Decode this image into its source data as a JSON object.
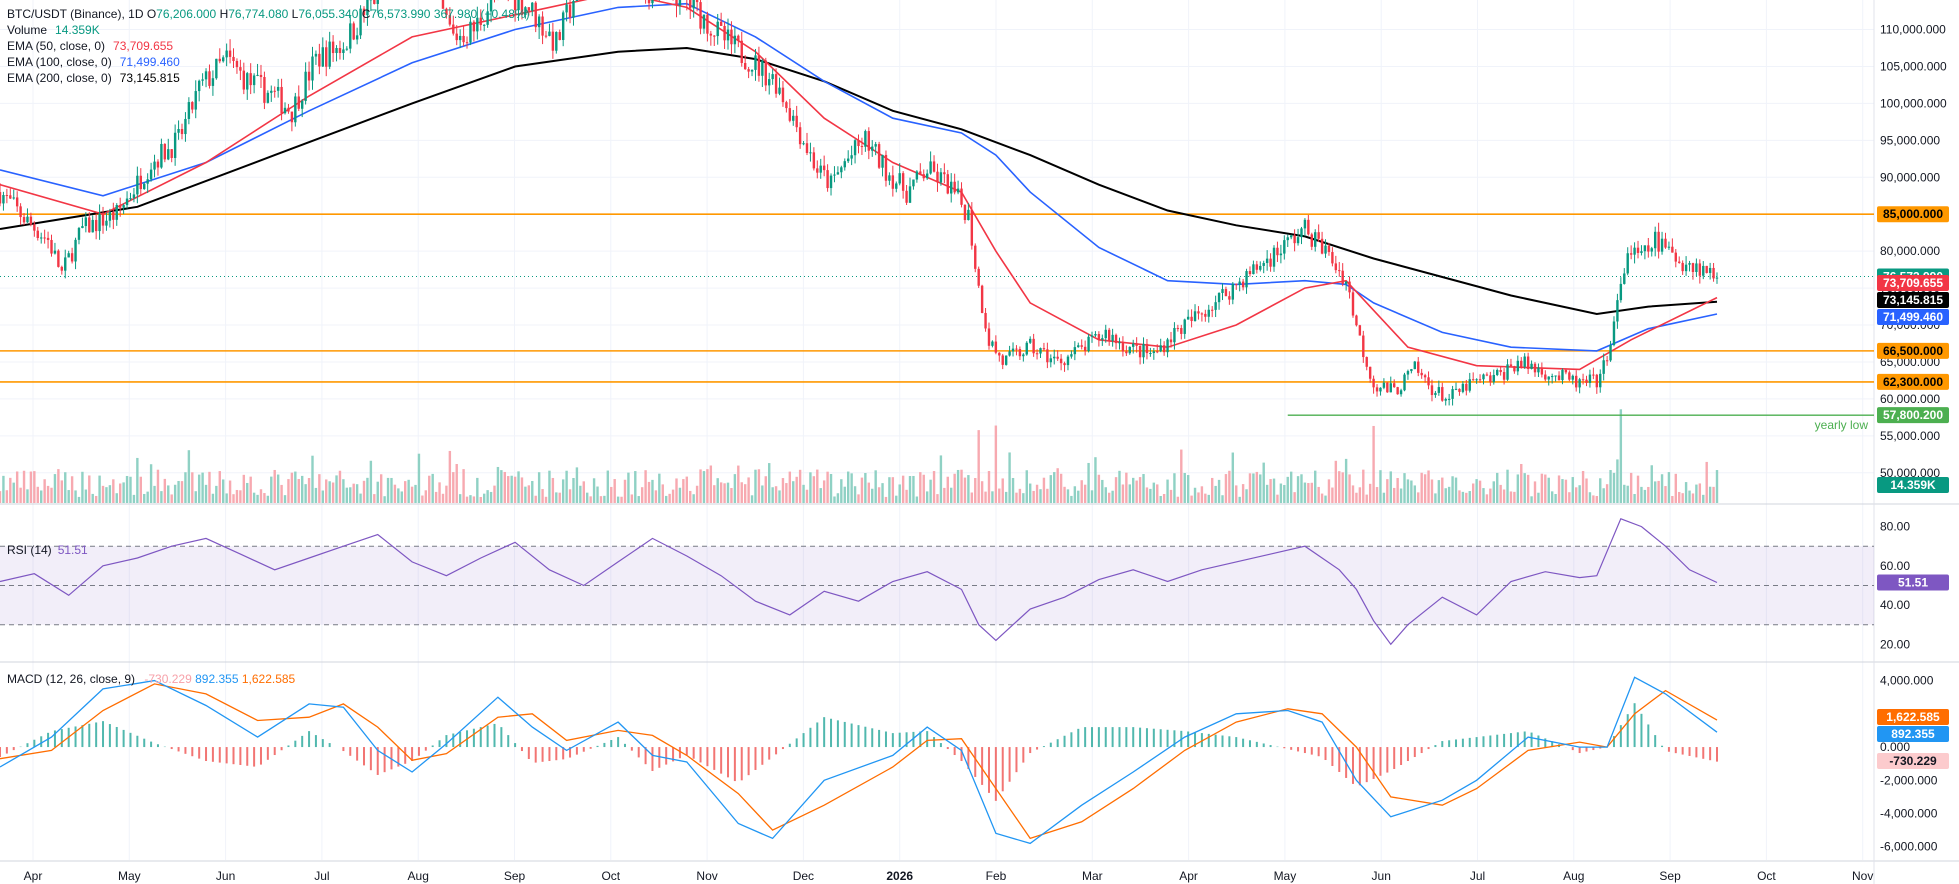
{
  "header": {
    "symbol": "BTC/USDT (Binance), 1D",
    "o_label": "O",
    "o": "76,206.000",
    "h_label": "H",
    "h": "76,774.080",
    "l_label": "L",
    "l": "76,055.340",
    "c_label": "C",
    "c": "76,573.990",
    "change": "367.980 (+0.48%)"
  },
  "legend": [
    {
      "label": "Volume",
      "value": "14.359K",
      "color": "#089981"
    },
    {
      "label": "EMA (50, close, 0)",
      "value": "73,709.655",
      "color": "#f23645"
    },
    {
      "label": "EMA (100, close, 0)",
      "value": "71,499.460",
      "color": "#2962ff"
    },
    {
      "label": "EMA (200, close, 0)",
      "value": "73,145.815",
      "color": "#000000"
    }
  ],
  "rsi_legend": {
    "label": "RSI (14)",
    "value": "51.51",
    "color": "#7e57c2"
  },
  "macd_legend": {
    "label": "MACD (12, 26, close, 9)",
    "hist": "-730.229",
    "macd": "892.355",
    "signal": "1,622.585"
  },
  "chart_data": {
    "type": "candlestick",
    "price_axis": {
      "min": 52000,
      "max": 114000,
      "ticks": [
        110000,
        105000,
        100000,
        95000,
        90000,
        85000,
        80000,
        75000,
        70000,
        65000,
        60000,
        55000,
        50000
      ]
    },
    "price_tick_labels": [
      "110,000.000",
      "105,000.000",
      "100,000.000",
      "95,000.000",
      "90,000.000",
      "85,000.000",
      "80,000.000",
      "75,000.000",
      "70,000.000",
      "65,000.000",
      "60,000.000",
      "55,000.000",
      "50,000.000"
    ],
    "x_axis_labels": [
      "Apr",
      "May",
      "Jun",
      "Jul",
      "Aug",
      "Sep",
      "Oct",
      "Nov",
      "Dec",
      "2026",
      "Feb",
      "Mar",
      "Apr",
      "May",
      "Jun",
      "Jul",
      "Aug",
      "Sep",
      "Oct",
      "Nov"
    ],
    "close_path": [
      [
        0,
        88000
      ],
      [
        8,
        84000
      ],
      [
        14,
        81500
      ],
      [
        18,
        77000
      ],
      [
        24,
        83000
      ],
      [
        34,
        85000
      ],
      [
        44,
        92000
      ],
      [
        52,
        95000
      ],
      [
        58,
        102000
      ],
      [
        66,
        106000
      ],
      [
        72,
        103000
      ],
      [
        80,
        101000
      ],
      [
        85,
        99000
      ],
      [
        92,
        106000
      ],
      [
        100,
        108000
      ],
      [
        110,
        115000
      ],
      [
        118,
        119000
      ],
      [
        124,
        117000
      ],
      [
        132,
        109000
      ],
      [
        138,
        110000
      ],
      [
        146,
        116000
      ],
      [
        154,
        113000
      ],
      [
        162,
        108000
      ],
      [
        170,
        118000
      ],
      [
        178,
        121000
      ],
      [
        186,
        115000
      ],
      [
        194,
        116000
      ],
      [
        202,
        113000
      ],
      [
        210,
        109000
      ],
      [
        218,
        106000
      ],
      [
        226,
        103000
      ],
      [
        232,
        97000
      ],
      [
        238,
        91000
      ],
      [
        242,
        89000
      ],
      [
        246,
        92000
      ],
      [
        252,
        95000
      ],
      [
        258,
        91000
      ],
      [
        264,
        88000
      ],
      [
        270,
        91000
      ],
      [
        276,
        89000
      ],
      [
        282,
        85000
      ],
      [
        285,
        75000
      ],
      [
        288,
        68000
      ],
      [
        292,
        65000
      ],
      [
        300,
        67000
      ],
      [
        308,
        65000
      ],
      [
        316,
        67000
      ],
      [
        322,
        69000
      ],
      [
        328,
        67000
      ],
      [
        336,
        66000
      ],
      [
        342,
        69000
      ],
      [
        348,
        71000
      ],
      [
        356,
        74000
      ],
      [
        364,
        77000
      ],
      [
        372,
        80000
      ],
      [
        380,
        83000
      ],
      [
        386,
        80000
      ],
      [
        392,
        76000
      ],
      [
        396,
        68000
      ],
      [
        400,
        62000
      ],
      [
        406,
        61000
      ],
      [
        412,
        64000
      ],
      [
        418,
        61000
      ],
      [
        422,
        60000
      ],
      [
        428,
        62000
      ],
      [
        436,
        63000
      ],
      [
        442,
        65000
      ],
      [
        448,
        64000
      ],
      [
        454,
        63000
      ],
      [
        460,
        62000
      ],
      [
        466,
        62500
      ],
      [
        470,
        70000
      ],
      [
        474,
        80000
      ],
      [
        478,
        79000
      ],
      [
        482,
        81500
      ],
      [
        488,
        79000
      ],
      [
        494,
        78000
      ],
      [
        500,
        76574
      ]
    ],
    "ema50_path": [
      [
        0,
        89000
      ],
      [
        30,
        85000
      ],
      [
        60,
        92000
      ],
      [
        90,
        101000
      ],
      [
        120,
        109000
      ],
      [
        150,
        112000
      ],
      [
        180,
        115000
      ],
      [
        200,
        113000
      ],
      [
        220,
        107000
      ],
      [
        240,
        98000
      ],
      [
        260,
        92000
      ],
      [
        280,
        88000
      ],
      [
        290,
        80000
      ],
      [
        300,
        73000
      ],
      [
        320,
        68000
      ],
      [
        340,
        67000
      ],
      [
        360,
        70000
      ],
      [
        380,
        75000
      ],
      [
        392,
        76000
      ],
      [
        400,
        72000
      ],
      [
        410,
        67000
      ],
      [
        430,
        64500
      ],
      [
        460,
        64000
      ],
      [
        475,
        68000
      ],
      [
        500,
        73710
      ]
    ],
    "ema100_path": [
      [
        0,
        91000
      ],
      [
        30,
        87500
      ],
      [
        60,
        92000
      ],
      [
        90,
        99000
      ],
      [
        120,
        105500
      ],
      [
        150,
        110000
      ],
      [
        180,
        113000
      ],
      [
        200,
        113500
      ],
      [
        220,
        109000
      ],
      [
        240,
        103000
      ],
      [
        260,
        98000
      ],
      [
        280,
        96000
      ],
      [
        290,
        93000
      ],
      [
        300,
        88000
      ],
      [
        320,
        80500
      ],
      [
        340,
        76000
      ],
      [
        360,
        75500
      ],
      [
        380,
        76000
      ],
      [
        392,
        75500
      ],
      [
        400,
        73000
      ],
      [
        420,
        69000
      ],
      [
        440,
        67000
      ],
      [
        465,
        66500
      ],
      [
        480,
        69500
      ],
      [
        500,
        71499
      ]
    ],
    "ema200_path": [
      [
        0,
        83000
      ],
      [
        40,
        86000
      ],
      [
        80,
        93000
      ],
      [
        120,
        100000
      ],
      [
        150,
        105000
      ],
      [
        180,
        107000
      ],
      [
        200,
        107500
      ],
      [
        220,
        106000
      ],
      [
        240,
        103000
      ],
      [
        260,
        99000
      ],
      [
        280,
        96500
      ],
      [
        300,
        93000
      ],
      [
        320,
        89000
      ],
      [
        340,
        85500
      ],
      [
        360,
        83500
      ],
      [
        380,
        82000
      ],
      [
        400,
        79000
      ],
      [
        420,
        76500
      ],
      [
        440,
        74000
      ],
      [
        465,
        71500
      ],
      [
        480,
        72500
      ],
      [
        500,
        73146
      ]
    ],
    "horizontal_levels": [
      {
        "price": 85000,
        "label": "85,000.000",
        "color": "#ff9800"
      },
      {
        "price": 66500,
        "label": "66,500.000",
        "color": "#ff9800"
      },
      {
        "price": 62300,
        "label": "62,300.000",
        "color": "#ff9800"
      }
    ],
    "yearly_low": {
      "price": 57800,
      "label": "57,800.200",
      "text": "yearly low",
      "color": "#4caf50"
    },
    "last_price": {
      "label": "76,573.990",
      "color": "#089981"
    },
    "ema_tags": [
      {
        "label": "73,709.655",
        "color": "#f23645"
      },
      {
        "label": "73,145.815",
        "color": "#000000"
      },
      {
        "label": "71,499.460",
        "color": "#2962ff"
      }
    ],
    "volume_tag": {
      "label": "14.359K",
      "color": "#089981"
    },
    "rsi": {
      "levels": [
        70,
        50,
        30
      ],
      "tick_labels": [
        "80.00",
        "60.00",
        "40.00",
        "20.00"
      ],
      "ticks": [
        80,
        60,
        40,
        20
      ],
      "range": [
        12,
        90
      ],
      "last_label": "51.51",
      "path": [
        [
          0,
          52
        ],
        [
          10,
          56
        ],
        [
          20,
          45
        ],
        [
          30,
          60
        ],
        [
          40,
          64
        ],
        [
          50,
          70
        ],
        [
          60,
          74
        ],
        [
          70,
          66
        ],
        [
          80,
          58
        ],
        [
          90,
          64
        ],
        [
          100,
          70
        ],
        [
          110,
          76
        ],
        [
          120,
          62
        ],
        [
          130,
          55
        ],
        [
          140,
          64
        ],
        [
          150,
          72
        ],
        [
          160,
          58
        ],
        [
          170,
          50
        ],
        [
          180,
          62
        ],
        [
          190,
          74
        ],
        [
          200,
          65
        ],
        [
          210,
          55
        ],
        [
          220,
          42
        ],
        [
          230,
          35
        ],
        [
          240,
          47
        ],
        [
          250,
          42
        ],
        [
          260,
          52
        ],
        [
          270,
          57
        ],
        [
          280,
          48
        ],
        [
          285,
          30
        ],
        [
          290,
          22
        ],
        [
          300,
          38
        ],
        [
          310,
          44
        ],
        [
          320,
          53
        ],
        [
          330,
          58
        ],
        [
          340,
          52
        ],
        [
          350,
          58
        ],
        [
          360,
          62
        ],
        [
          370,
          66
        ],
        [
          380,
          70
        ],
        [
          390,
          58
        ],
        [
          395,
          48
        ],
        [
          400,
          32
        ],
        [
          405,
          20
        ],
        [
          410,
          30
        ],
        [
          420,
          44
        ],
        [
          430,
          35
        ],
        [
          440,
          52
        ],
        [
          450,
          57
        ],
        [
          460,
          54
        ],
        [
          465,
          55
        ],
        [
          472,
          84
        ],
        [
          478,
          80
        ],
        [
          485,
          70
        ],
        [
          492,
          58
        ],
        [
          500,
          51.5
        ]
      ]
    },
    "macd": {
      "tick_values": [
        4000,
        2000,
        0,
        -2000,
        -4000,
        -6000
      ],
      "tick_labels": [
        "4,000.000",
        "2,000.000",
        "0.000",
        "-2,000.000",
        "-4,000.000",
        "-6,000.000"
      ],
      "range": [
        -6800,
        5000
      ],
      "macd_last": "892.355",
      "signal_last": "1,622.585",
      "hist_last": "-730.229",
      "macd_path": [
        [
          0,
          -1200
        ],
        [
          15,
          600
        ],
        [
          30,
          3500
        ],
        [
          45,
          4000
        ],
        [
          60,
          2500
        ],
        [
          75,
          600
        ],
        [
          90,
          2600
        ],
        [
          100,
          2400
        ],
        [
          110,
          -200
        ],
        [
          120,
          -1500
        ],
        [
          130,
          200
        ],
        [
          145,
          3000
        ],
        [
          155,
          1200
        ],
        [
          165,
          -200
        ],
        [
          180,
          1500
        ],
        [
          190,
          -500
        ],
        [
          200,
          -900
        ],
        [
          215,
          -4600
        ],
        [
          225,
          -5500
        ],
        [
          240,
          -2000
        ],
        [
          260,
          -500
        ],
        [
          270,
          1200
        ],
        [
          280,
          -200
        ],
        [
          290,
          -5200
        ],
        [
          300,
          -5800
        ],
        [
          315,
          -3500
        ],
        [
          330,
          -1500
        ],
        [
          345,
          600
        ],
        [
          360,
          2000
        ],
        [
          375,
          2200
        ],
        [
          385,
          1500
        ],
        [
          395,
          -2000
        ],
        [
          405,
          -4200
        ],
        [
          420,
          -3200
        ],
        [
          430,
          -2000
        ],
        [
          445,
          600
        ],
        [
          460,
          0
        ],
        [
          468,
          0
        ],
        [
          476,
          4200
        ],
        [
          485,
          3200
        ],
        [
          500,
          892
        ]
      ],
      "signal_path": [
        [
          0,
          -700
        ],
        [
          15,
          -200
        ],
        [
          30,
          2200
        ],
        [
          45,
          3800
        ],
        [
          60,
          3200
        ],
        [
          75,
          1600
        ],
        [
          90,
          1800
        ],
        [
          100,
          2600
        ],
        [
          110,
          1200
        ],
        [
          120,
          -800
        ],
        [
          130,
          -400
        ],
        [
          145,
          1800
        ],
        [
          155,
          2000
        ],
        [
          165,
          400
        ],
        [
          180,
          1000
        ],
        [
          190,
          700
        ],
        [
          200,
          -500
        ],
        [
          215,
          -2800
        ],
        [
          225,
          -5000
        ],
        [
          240,
          -3500
        ],
        [
          260,
          -1200
        ],
        [
          270,
          400
        ],
        [
          280,
          500
        ],
        [
          290,
          -2500
        ],
        [
          300,
          -5500
        ],
        [
          315,
          -4500
        ],
        [
          330,
          -2500
        ],
        [
          345,
          -200
        ],
        [
          360,
          1500
        ],
        [
          375,
          2300
        ],
        [
          385,
          2000
        ],
        [
          395,
          0
        ],
        [
          405,
          -3000
        ],
        [
          420,
          -3500
        ],
        [
          430,
          -2500
        ],
        [
          445,
          -200
        ],
        [
          460,
          300
        ],
        [
          468,
          0
        ],
        [
          476,
          2000
        ],
        [
          485,
          3400
        ],
        [
          500,
          1623
        ]
      ]
    },
    "grid": true
  }
}
